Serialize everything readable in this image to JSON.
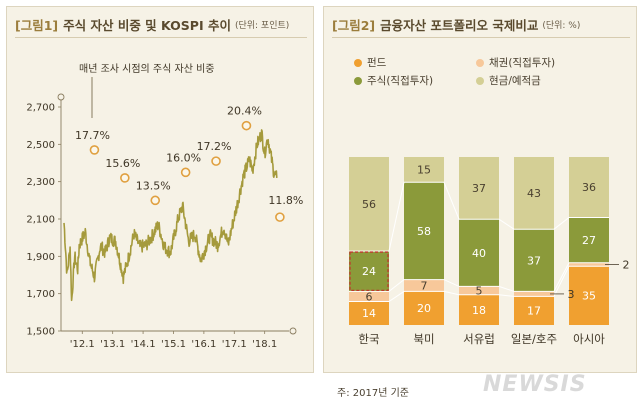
{
  "chart_data": [
    {
      "type": "line",
      "tag": "[그림1]",
      "title": "주식 자산 비중 및 KOSPI 추이",
      "unit": "(단위: 포인트)",
      "annotation": "매년 조사 시점의 주식 자산 비중",
      "x_ticks": [
        "'12.1",
        "'13.1",
        "'14.1",
        "'15.1",
        "'16.1",
        "'17.1",
        "'18.1"
      ],
      "ylim": [
        1500,
        2700
      ],
      "y_ticks": [
        "1,500",
        "1,700",
        "1,900",
        "2,100",
        "2,300",
        "2,500",
        "2,700"
      ],
      "kospi_series": {
        "name": "KOSPI",
        "color": "#a59a3c",
        "points": [
          [
            2011.5,
            2080
          ],
          [
            2011.6,
            1800
          ],
          [
            2011.7,
            1950
          ],
          [
            2011.75,
            1660
          ],
          [
            2011.85,
            1900
          ],
          [
            2011.95,
            1830
          ],
          [
            2012.0,
            1960
          ],
          [
            2012.2,
            2030
          ],
          [
            2012.35,
            1870
          ],
          [
            2012.5,
            1790
          ],
          [
            2012.7,
            1960
          ],
          [
            2012.85,
            1920
          ],
          [
            2013.0,
            2000
          ],
          [
            2013.2,
            1980
          ],
          [
            2013.45,
            1790
          ],
          [
            2013.6,
            1880
          ],
          [
            2013.8,
            2020
          ],
          [
            2014.0,
            1950
          ],
          [
            2014.2,
            1960
          ],
          [
            2014.4,
            2010
          ],
          [
            2014.6,
            2070
          ],
          [
            2014.8,
            1950
          ],
          [
            2015.0,
            1920
          ],
          [
            2015.25,
            2100
          ],
          [
            2015.4,
            2170
          ],
          [
            2015.6,
            1980
          ],
          [
            2015.8,
            2020
          ],
          [
            2016.0,
            1880
          ],
          [
            2016.1,
            1920
          ],
          [
            2016.3,
            2010
          ],
          [
            2016.55,
            1960
          ],
          [
            2016.75,
            2060
          ],
          [
            2016.9,
            1960
          ],
          [
            2017.0,
            2040
          ],
          [
            2017.2,
            2180
          ],
          [
            2017.4,
            2330
          ],
          [
            2017.6,
            2420
          ],
          [
            2017.7,
            2360
          ],
          [
            2017.85,
            2500
          ],
          [
            2018.0,
            2560
          ],
          [
            2018.1,
            2450
          ],
          [
            2018.2,
            2540
          ],
          [
            2018.4,
            2350
          ],
          [
            2018.5,
            2320
          ]
        ]
      },
      "stock_share_points": [
        {
          "x": 2012.5,
          "y": 2470,
          "label": "17.7%"
        },
        {
          "x": 2013.5,
          "y": 2320,
          "label": "15.6%"
        },
        {
          "x": 2014.5,
          "y": 2200,
          "label": "13.5%"
        },
        {
          "x": 2015.5,
          "y": 2350,
          "label": "16.0%"
        },
        {
          "x": 2016.5,
          "y": 2410,
          "label": "17.2%"
        },
        {
          "x": 2017.5,
          "y": 2600,
          "label": "20.4%"
        },
        {
          "x": 2018.6,
          "y": 2110,
          "label": "11.8%"
        }
      ]
    },
    {
      "type": "bar",
      "stacked": true,
      "tag": "[그림2]",
      "title": "금융자산 포트폴리오 국제비교",
      "unit": "(단위: %)",
      "categories": [
        "한국",
        "북미",
        "서유럽",
        "일본/호주",
        "아시아"
      ],
      "series": [
        {
          "name": "펀드",
          "color": "#f0a030",
          "values": [
            14,
            20,
            18,
            17,
            35
          ]
        },
        {
          "name": "채권(직접투자)",
          "color": "#f7c89a",
          "values": [
            6,
            7,
            5,
            3,
            2
          ]
        },
        {
          "name": "주식(직접투자)",
          "color": "#8b9a3a",
          "values": [
            24,
            58,
            40,
            37,
            27
          ]
        },
        {
          "name": "현금/예적금",
          "color": "#d4cf95",
          "values": [
            56,
            15,
            37,
            43,
            36
          ]
        }
      ],
      "ylim": [
        0,
        100
      ],
      "callouts": [
        {
          "category": "일본/호주",
          "series": "채권(직접투자)",
          "label": "3"
        },
        {
          "category": "아시아",
          "series": "채권(직접투자)",
          "label": "2"
        }
      ],
      "highlight": {
        "category": "한국",
        "series": "주식(직접투자)"
      }
    }
  ],
  "footnote": "주: 2017년 기준",
  "watermark": "NEWSIS"
}
